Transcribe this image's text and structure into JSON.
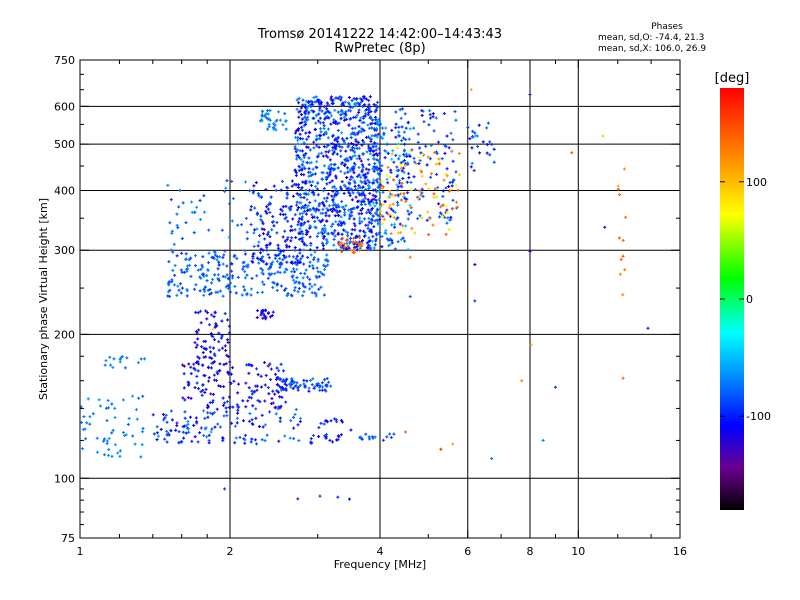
{
  "title_line1": "Tromsø 20141222 14:42:00–14:43:43",
  "title_line2": "RwPretec (8p)",
  "stats": {
    "header": "Phases",
    "line1": "mean, sd,O: -74.4, 21.3",
    "line2": "mean, sd,X: 106.0, 26.9"
  },
  "colorbar": {
    "unit": "[deg]",
    "ticks": [
      "100",
      "0",
      "-100"
    ],
    "tick_values": [
      100,
      0,
      -100
    ],
    "range": [
      -180,
      180
    ]
  },
  "chart_data": {
    "type": "scatter",
    "xlabel": "Frequency [MHz]",
    "ylabel": "Stationary phase Virtual Height [km]",
    "xscale": "log",
    "yscale": "log",
    "xlim": [
      1,
      16
    ],
    "ylim": [
      75,
      750
    ],
    "x_ticks": [
      1,
      2,
      4,
      6,
      8,
      10,
      16
    ],
    "x_tick_labels": [
      "1",
      "2",
      "4",
      "6",
      "8",
      "10",
      "16"
    ],
    "y_ticks": [
      75,
      100,
      200,
      300,
      400,
      500,
      600,
      750
    ],
    "y_tick_labels": [
      "75",
      "100",
      "200",
      "300",
      "400",
      "500",
      "600",
      "750"
    ],
    "grid": true,
    "color_encoding": "phase [deg]",
    "clusters": [
      {
        "x_range": [
          1.5,
          3.15
        ],
        "y_range": [
          240,
          300
        ],
        "phase_range": [
          -95,
          -65
        ],
        "count": 280
      },
      {
        "x_range": [
          2.7,
          4.0
        ],
        "y_range": [
          300,
          630
        ],
        "phase_range": [
          -125,
          -60
        ],
        "count": 950
      },
      {
        "x_range": [
          2.2,
          2.8
        ],
        "y_range": [
          280,
          420
        ],
        "phase_range": [
          -120,
          -80
        ],
        "count": 140
      },
      {
        "x_range": [
          3.8,
          4.6
        ],
        "y_range": [
          300,
          560
        ],
        "phase_range": [
          -120,
          -40
        ],
        "count": 150
      },
      {
        "x_range": [
          4.3,
          5.7
        ],
        "y_range": [
          340,
          600
        ],
        "phase_range": [
          -110,
          -70
        ],
        "count": 120
      },
      {
        "x_range": [
          4.0,
          5.8
        ],
        "y_range": [
          320,
          500
        ],
        "phase_range": [
          70,
          150
        ],
        "count": 90
      },
      {
        "x_range": [
          3.3,
          3.7
        ],
        "y_range": [
          295,
          320
        ],
        "phase_range": [
          120,
          150
        ],
        "count": 25
      },
      {
        "x_range": [
          1.5,
          2.3
        ],
        "y_range": [
          300,
          420
        ],
        "phase_range": [
          -90,
          -60
        ],
        "count": 50
      },
      {
        "x_range": [
          2.3,
          2.6
        ],
        "y_range": [
          535,
          590
        ],
        "phase_range": [
          -80,
          -60
        ],
        "count": 35
      },
      {
        "x_range": [
          1.7,
          2.0
        ],
        "y_range": [
          170,
          225
        ],
        "phase_range": [
          -130,
          -90
        ],
        "count": 70
      },
      {
        "x_range": [
          2.25,
          2.45
        ],
        "y_range": [
          215,
          225
        ],
        "phase_range": [
          -130,
          -100
        ],
        "count": 20
      },
      {
        "x_range": [
          1.6,
          2.6
        ],
        "y_range": [
          140,
          175
        ],
        "phase_range": [
          -130,
          -90
        ],
        "count": 150
      },
      {
        "x_range": [
          2.5,
          3.2
        ],
        "y_range": [
          152,
          162
        ],
        "phase_range": [
          -110,
          -70
        ],
        "count": 60
      },
      {
        "x_range": [
          1.4,
          2.8
        ],
        "y_range": [
          118,
          140
        ],
        "phase_range": [
          -120,
          -60
        ],
        "count": 130
      },
      {
        "x_range": [
          2.9,
          3.5
        ],
        "y_range": [
          118,
          135
        ],
        "phase_range": [
          -120,
          -80
        ],
        "count": 30
      },
      {
        "x_range": [
          1.0,
          1.35
        ],
        "y_range": [
          110,
          150
        ],
        "phase_range": [
          -80,
          -60
        ],
        "count": 55
      },
      {
        "x_range": [
          1.1,
          1.35
        ],
        "y_range": [
          170,
          180
        ],
        "phase_range": [
          -80,
          -60
        ],
        "count": 15
      },
      {
        "x_range": [
          3.6,
          4.3
        ],
        "y_range": [
          120,
          124
        ],
        "phase_range": [
          -90,
          -70
        ],
        "count": 15
      },
      {
        "x_range": [
          6.0,
          6.8
        ],
        "y_range": [
          440,
          560
        ],
        "phase_range": [
          -120,
          -60
        ],
        "count": 25
      },
      {
        "x_range": [
          12.0,
          12.5
        ],
        "y_range": [
          240,
          460
        ],
        "phase_range": [
          110,
          150
        ],
        "count": 12
      },
      {
        "x_range": [
          2.5,
          3.5
        ],
        "y_range": [
          90,
          92
        ],
        "phase_range": [
          -120,
          -90
        ],
        "count": 4
      }
    ],
    "scattered_points": [
      {
        "x": 4.6,
        "y": 290,
        "phase": 130
      },
      {
        "x": 4.6,
        "y": 240,
        "phase": -80
      },
      {
        "x": 4.5,
        "y": 125,
        "phase": 140
      },
      {
        "x": 5.3,
        "y": 115,
        "phase": 160
      },
      {
        "x": 5.6,
        "y": 118,
        "phase": 110
      },
      {
        "x": 6.7,
        "y": 110,
        "phase": -70
      },
      {
        "x": 6.2,
        "y": 280,
        "phase": -110
      },
      {
        "x": 6.2,
        "y": 235,
        "phase": -90
      },
      {
        "x": 6.1,
        "y": 650,
        "phase": 110
      },
      {
        "x": 8.0,
        "y": 635,
        "phase": -130
      },
      {
        "x": 8.0,
        "y": 298,
        "phase": -110
      },
      {
        "x": 8.05,
        "y": 190,
        "phase": 100
      },
      {
        "x": 7.7,
        "y": 160,
        "phase": 120
      },
      {
        "x": 8.5,
        "y": 120,
        "phase": -70
      },
      {
        "x": 9.0,
        "y": 155,
        "phase": -90
      },
      {
        "x": 9.7,
        "y": 480,
        "phase": 140
      },
      {
        "x": 11.2,
        "y": 520,
        "phase": 95
      },
      {
        "x": 11.3,
        "y": 335,
        "phase": -140
      },
      {
        "x": 12.3,
        "y": 162,
        "phase": 140
      },
      {
        "x": 13.8,
        "y": 206,
        "phase": -120
      },
      {
        "x": 5.0,
        "y": 470,
        "phase": 120
      },
      {
        "x": 1.95,
        "y": 95,
        "phase": -90
      },
      {
        "x": 1.85,
        "y": 205,
        "phase": 90
      }
    ]
  }
}
